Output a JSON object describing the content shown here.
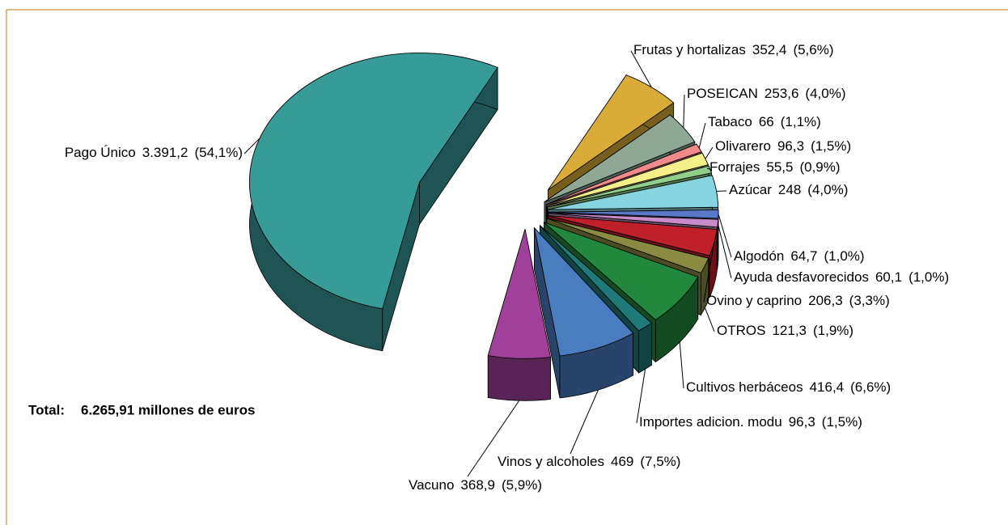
{
  "chart_data": {
    "type": "pie3d",
    "categories": [
      "Frutas y hortalizas",
      "POSEICAN",
      "Tabaco",
      "Olivarero",
      "Forrajes",
      "Azúcar",
      "Algodón",
      "Ayuda desfavorecidos",
      "Ovino y caprino",
      "OTROS",
      "Cultivos herbáceos",
      "Importes adicion. modu",
      "Vinos y alcoholes",
      "Vacuno",
      "Pago Único"
    ],
    "values": [
      352.4,
      253.6,
      66,
      96.3,
      55.5,
      248,
      64.7,
      60.1,
      206.3,
      121.3,
      416.4,
      96.3,
      469,
      368.9,
      3391.2
    ],
    "value_labels": [
      "352,4",
      "253,6",
      "66",
      "96,3",
      "55,5",
      "248",
      "64,7",
      "60,1",
      "206,3",
      "121,3",
      "416,4",
      "96,3",
      "469",
      "368,9",
      "3.391,2"
    ],
    "percentages": [
      5.6,
      4.0,
      1.1,
      1.5,
      0.9,
      4.0,
      1.0,
      1.0,
      3.3,
      1.9,
      6.6,
      1.5,
      7.5,
      5.9,
      54.1
    ],
    "percentage_labels": [
      "(5,6%)",
      "(4,0%)",
      "(1,1%)",
      "(1,5%)",
      "(0,9%)",
      "(4,0%)",
      "(1,0%)",
      "(1,0%)",
      "(3,3%)",
      "(1,9%)",
      "(6,6%)",
      "(1,5%)",
      "(7,5%)",
      "(5,9%)",
      "(54,1%)"
    ],
    "colors": [
      "#d9ac3a",
      "#8fa896",
      "#f08a8a",
      "#f5ef8a",
      "#8fcf8a",
      "#86d4e0",
      "#5a78c8",
      "#c88ac8",
      "#c0202a",
      "#8a8a40",
      "#21883e",
      "#1f7a7a",
      "#4a7cc0",
      "#a0409a",
      "#379b98"
    ],
    "total_label": "Total:",
    "total_text": "6.265,91  millones de euros"
  }
}
